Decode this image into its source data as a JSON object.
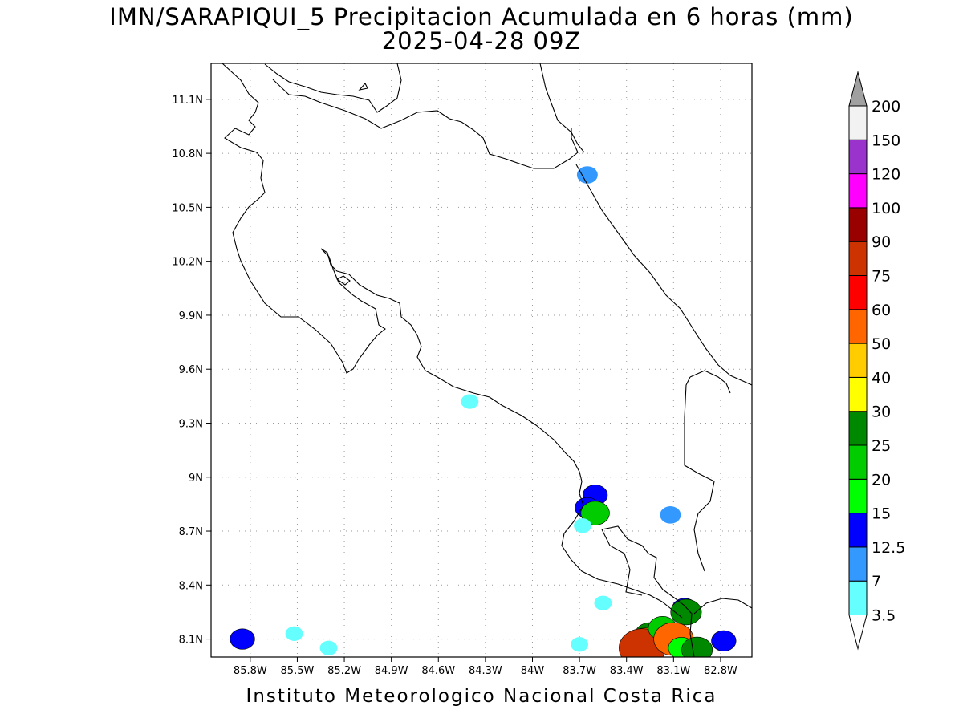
{
  "title": {
    "line1": "IMN/SARAPIQUI_5 Precipitacion Acumulada en 6 horas (mm)",
    "line2": "2025-04-28 09Z"
  },
  "credit": "Instituto Meteorologico Nacional Costa Rica",
  "map": {
    "lon_range": [
      -86.05,
      -82.6
    ],
    "lat_range": [
      8.0,
      11.3
    ],
    "x_ticks": [
      "85.8W",
      "85.5W",
      "85.2W",
      "84.9W",
      "84.6W",
      "84.3W",
      "84W",
      "83.7W",
      "83.4W",
      "83.1W",
      "82.8W"
    ],
    "y_ticks": [
      "11.1N",
      "10.8N",
      "10.5N",
      "10.2N",
      "9.9N",
      "9.6N",
      "9.3N",
      "9N",
      "8.7N",
      "8.4N",
      "8.1N"
    ],
    "gridlines": "dotted"
  },
  "legend": {
    "labels": [
      "3.5",
      "7",
      "12.5",
      "15",
      "20",
      "25",
      "30",
      "40",
      "50",
      "60",
      "75",
      "90",
      "100",
      "120",
      "150",
      "200"
    ],
    "colors": [
      "#66ffff",
      "#3399ff",
      "#0000ff",
      "#00ff00",
      "#00cc00",
      "#008800",
      "#ffff00",
      "#ffcc00",
      "#ff6600",
      "#ff0000",
      "#cc3300",
      "#990000",
      "#ff00ff",
      "#9933cc",
      "#f2f2f2"
    ],
    "top_arrow_color": "#a0a0a0",
    "bottom_arrow_color": "#ffffff"
  },
  "precip_cells": [
    {
      "lon": -83.65,
      "lat": 10.68,
      "value": 7
    },
    {
      "lon": -84.4,
      "lat": 9.42,
      "value": 3.5
    },
    {
      "lon": -83.6,
      "lat": 8.9,
      "value": 12.5
    },
    {
      "lon": -83.65,
      "lat": 8.83,
      "value": 12.5
    },
    {
      "lon": -83.6,
      "lat": 8.8,
      "value": 20
    },
    {
      "lon": -83.68,
      "lat": 8.73,
      "value": 3.5
    },
    {
      "lon": -83.12,
      "lat": 8.79,
      "value": 7
    },
    {
      "lon": -83.55,
      "lat": 8.3,
      "value": 3.5
    },
    {
      "lon": -83.7,
      "lat": 8.07,
      "value": 3.5
    },
    {
      "lon": -85.85,
      "lat": 8.1,
      "value": 12.5
    },
    {
      "lon": -85.3,
      "lat": 8.05,
      "value": 3.5
    },
    {
      "lon": -85.52,
      "lat": 8.13,
      "value": 3.5
    },
    {
      "lon": -83.03,
      "lat": 8.27,
      "value": 12.5
    },
    {
      "lon": -83.02,
      "lat": 8.25,
      "value": 25
    },
    {
      "lon": -82.78,
      "lat": 8.09,
      "value": 12.5
    },
    {
      "lon": -83.3,
      "lat": 8.1,
      "value": 15
    },
    {
      "lon": -83.25,
      "lat": 8.12,
      "value": 25
    },
    {
      "lon": -83.28,
      "lat": 8.07,
      "value": 50
    },
    {
      "lon": -83.3,
      "lat": 8.05,
      "value": 75
    },
    {
      "lon": -83.17,
      "lat": 8.16,
      "value": 20
    },
    {
      "lon": -83.1,
      "lat": 8.1,
      "value": 50
    },
    {
      "lon": -83.05,
      "lat": 8.05,
      "value": 15
    },
    {
      "lon": -82.95,
      "lat": 8.04,
      "value": 25
    }
  ]
}
